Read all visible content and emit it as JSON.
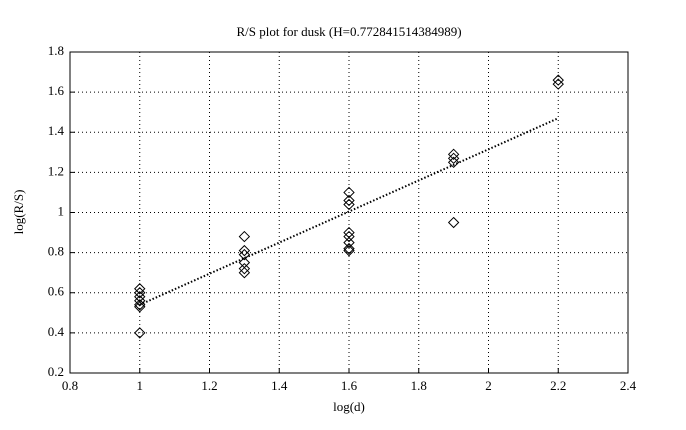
{
  "chart_data": {
    "type": "scatter",
    "title": "R/S plot for dusk (H=0.772841514384989)",
    "x_label": "log(d)",
    "y_label": "log(R/S)",
    "x": [
      1,
      1,
      1,
      1,
      1,
      1,
      1,
      1.3,
      1.3,
      1.3,
      1.3,
      1.3,
      1.3,
      1.6,
      1.6,
      1.6,
      1.6,
      1.6,
      1.6,
      1.6,
      1.6,
      1.9,
      1.9,
      1.9,
      1.9,
      2.2,
      2.2
    ],
    "values": [
      0.62,
      0.6,
      0.58,
      0.56,
      0.54,
      0.53,
      0.4,
      0.88,
      0.81,
      0.79,
      0.75,
      0.72,
      0.7,
      1.1,
      1.06,
      1.04,
      0.9,
      0.88,
      0.85,
      0.82,
      0.81,
      1.29,
      1.27,
      1.25,
      0.95,
      1.66,
      1.64
    ],
    "color": "#000000",
    "fit": {
      "x": [
        1,
        2.2
      ],
      "values": [
        0.54,
        1.47
      ]
    },
    "xlim": [
      0.8,
      2.4
    ],
    "xticks": [
      0.8,
      1,
      1.2,
      1.4,
      1.6,
      1.8,
      2,
      2.2,
      2.4
    ],
    "ylim": [
      0.2,
      1.8
    ],
    "yticks": [
      0.2,
      0.4,
      0.6,
      0.8,
      1,
      1.2,
      1.4,
      1.6,
      1.8
    ],
    "grid": true
  }
}
